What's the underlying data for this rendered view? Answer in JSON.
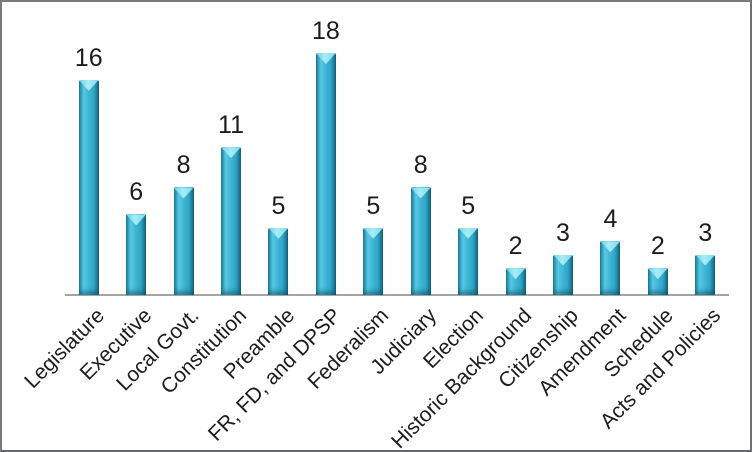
{
  "chart_data": {
    "type": "bar",
    "title": "",
    "xlabel": "",
    "ylabel": "",
    "categories": [
      "Legislature",
      "Executive",
      "Local Govt.",
      "Constitution",
      "Preamble",
      "FR, FD, and DPSP",
      "Federalism",
      "Judiciary",
      "Election",
      "Historic Background",
      "Citizenship",
      "Amendment",
      "Schedule",
      "Acts and Policies"
    ],
    "values": [
      16,
      6,
      8,
      11,
      5,
      18,
      5,
      8,
      5,
      2,
      3,
      4,
      2,
      3
    ],
    "ylim": [
      0,
      18
    ],
    "grid": false,
    "legend": false,
    "data_labels_shown": true,
    "x_label_rotation_deg": 45,
    "bar_color": "#35AECD",
    "bar_edge_color": "#1B7D99",
    "bar_top_highlight_color": "#8FDFF0",
    "axis_line_color": "#A3A3A3",
    "text_color": "#1C1C1C",
    "frame_border_color": "#6E7275",
    "background_color": "#FFFFFF"
  }
}
